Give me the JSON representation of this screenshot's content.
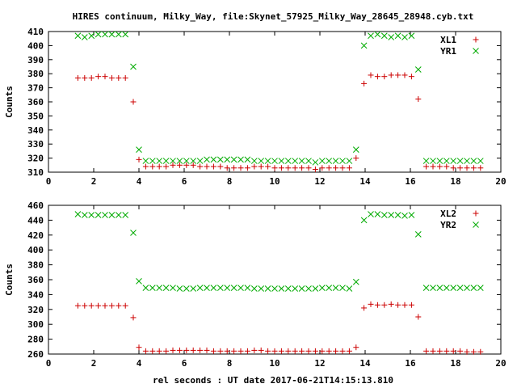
{
  "figure": {
    "title": "HIRES continuum, Milky_Way, file:Skynet_57925_Milky_Way_28645_28948.cyb.txt",
    "xlabel": "rel seconds : UT date 2017-06-21T14:15:13.810"
  },
  "chart_data": [
    {
      "type": "scatter",
      "ylabel": "Counts",
      "xlim": [
        0,
        20
      ],
      "ylim": [
        310,
        410
      ],
      "x_ticks": [
        0,
        2,
        4,
        6,
        8,
        10,
        12,
        14,
        16,
        18,
        20
      ],
      "y_ticks": [
        310,
        320,
        330,
        340,
        350,
        360,
        370,
        380,
        390,
        400,
        410
      ],
      "grid": false,
      "legend_position": "top-right",
      "series": [
        {
          "name": "XL1",
          "marker": "plus",
          "color": "#cc0000",
          "x": [
            1.3,
            1.6,
            1.9,
            2.2,
            2.5,
            2.8,
            3.1,
            3.4,
            3.75,
            4.0,
            4.3,
            4.6,
            4.9,
            5.2,
            5.5,
            5.8,
            6.1,
            6.4,
            6.7,
            7.0,
            7.3,
            7.6,
            7.9,
            8.2,
            8.5,
            8.8,
            9.1,
            9.4,
            9.7,
            10.0,
            10.3,
            10.6,
            10.9,
            11.2,
            11.5,
            11.8,
            12.1,
            12.4,
            12.7,
            13.0,
            13.3,
            13.6,
            13.95,
            14.25,
            14.55,
            14.85,
            15.15,
            15.45,
            15.75,
            16.05,
            16.35,
            16.7,
            17.0,
            17.3,
            17.6,
            17.9,
            18.2,
            18.5,
            18.8,
            19.1
          ],
          "y": [
            377,
            377,
            377,
            378,
            378,
            377,
            377,
            377,
            360,
            319,
            314,
            314,
            314,
            314,
            315,
            315,
            315,
            315,
            314,
            314,
            314,
            314,
            313,
            313,
            313,
            313,
            314,
            314,
            314,
            313,
            313,
            313,
            313,
            313,
            313,
            312,
            313,
            313,
            313,
            313,
            313,
            320,
            373,
            379,
            378,
            378,
            379,
            379,
            379,
            378,
            362,
            314,
            314,
            314,
            314,
            313,
            313,
            313,
            313,
            313
          ]
        },
        {
          "name": "YR1",
          "marker": "cross",
          "color": "#00aa00",
          "x": [
            1.3,
            1.6,
            1.9,
            2.2,
            2.5,
            2.8,
            3.1,
            3.4,
            3.75,
            4.0,
            4.3,
            4.6,
            4.9,
            5.2,
            5.5,
            5.8,
            6.1,
            6.4,
            6.7,
            7.0,
            7.3,
            7.6,
            7.9,
            8.2,
            8.5,
            8.8,
            9.1,
            9.4,
            9.7,
            10.0,
            10.3,
            10.6,
            10.9,
            11.2,
            11.5,
            11.8,
            12.1,
            12.4,
            12.7,
            13.0,
            13.3,
            13.6,
            13.95,
            14.25,
            14.55,
            14.85,
            15.15,
            15.45,
            15.75,
            16.05,
            16.35,
            16.7,
            17.0,
            17.3,
            17.6,
            17.9,
            18.2,
            18.5,
            18.8,
            19.1
          ],
          "y": [
            407,
            406,
            407,
            408,
            408,
            408,
            408,
            408,
            385,
            326,
            318,
            318,
            318,
            318,
            318,
            318,
            318,
            318,
            318,
            319,
            319,
            319,
            319,
            319,
            319,
            319,
            318,
            318,
            318,
            318,
            318,
            318,
            318,
            318,
            318,
            317,
            318,
            318,
            318,
            318,
            318,
            326,
            400,
            407,
            408,
            407,
            406,
            407,
            406,
            407,
            383,
            318,
            318,
            318,
            318,
            318,
            318,
            318,
            318,
            318
          ]
        }
      ]
    },
    {
      "type": "scatter",
      "ylabel": "Counts",
      "xlim": [
        0,
        20
      ],
      "ylim": [
        260,
        460
      ],
      "x_ticks": [
        0,
        2,
        4,
        6,
        8,
        10,
        12,
        14,
        16,
        18,
        20
      ],
      "y_ticks": [
        260,
        280,
        300,
        320,
        340,
        360,
        380,
        400,
        420,
        440,
        460
      ],
      "grid": false,
      "legend_position": "top-right",
      "series": [
        {
          "name": "XL2",
          "marker": "plus",
          "color": "#cc0000",
          "x": [
            1.3,
            1.6,
            1.9,
            2.2,
            2.5,
            2.8,
            3.1,
            3.4,
            3.75,
            4.0,
            4.3,
            4.6,
            4.9,
            5.2,
            5.5,
            5.8,
            6.1,
            6.4,
            6.7,
            7.0,
            7.3,
            7.6,
            7.9,
            8.2,
            8.5,
            8.8,
            9.1,
            9.4,
            9.7,
            10.0,
            10.3,
            10.6,
            10.9,
            11.2,
            11.5,
            11.8,
            12.1,
            12.4,
            12.7,
            13.0,
            13.3,
            13.6,
            13.95,
            14.25,
            14.55,
            14.85,
            15.15,
            15.45,
            15.75,
            16.05,
            16.35,
            16.7,
            17.0,
            17.3,
            17.6,
            17.9,
            18.2,
            18.5,
            18.8,
            19.1
          ],
          "y": [
            325,
            325,
            325,
            325,
            325,
            325,
            325,
            325,
            309,
            269,
            264,
            264,
            264,
            264,
            265,
            265,
            265,
            265,
            265,
            265,
            264,
            264,
            264,
            264,
            264,
            264,
            265,
            265,
            264,
            264,
            264,
            264,
            264,
            264,
            264,
            264,
            264,
            264,
            264,
            264,
            264,
            269,
            322,
            327,
            326,
            326,
            327,
            326,
            326,
            326,
            310,
            264,
            264,
            264,
            264,
            264,
            264,
            263,
            263,
            263
          ]
        },
        {
          "name": "YR2",
          "marker": "cross",
          "color": "#00aa00",
          "x": [
            1.3,
            1.6,
            1.9,
            2.2,
            2.5,
            2.8,
            3.1,
            3.4,
            3.75,
            4.0,
            4.3,
            4.6,
            4.9,
            5.2,
            5.5,
            5.8,
            6.1,
            6.4,
            6.7,
            7.0,
            7.3,
            7.6,
            7.9,
            8.2,
            8.5,
            8.8,
            9.1,
            9.4,
            9.7,
            10.0,
            10.3,
            10.6,
            10.9,
            11.2,
            11.5,
            11.8,
            12.1,
            12.4,
            12.7,
            13.0,
            13.3,
            13.6,
            13.95,
            14.25,
            14.55,
            14.85,
            15.15,
            15.45,
            15.75,
            16.05,
            16.35,
            16.7,
            17.0,
            17.3,
            17.6,
            17.9,
            18.2,
            18.5,
            18.8,
            19.1
          ],
          "y": [
            448,
            447,
            447,
            447,
            447,
            447,
            447,
            447,
            423,
            358,
            349,
            349,
            349,
            349,
            349,
            348,
            348,
            348,
            349,
            349,
            349,
            349,
            349,
            349,
            349,
            349,
            348,
            348,
            348,
            348,
            348,
            348,
            348,
            348,
            348,
            348,
            349,
            349,
            349,
            349,
            348,
            357,
            440,
            448,
            448,
            447,
            447,
            447,
            446,
            447,
            421,
            349,
            349,
            349,
            349,
            349,
            349,
            349,
            349,
            349
          ]
        }
      ]
    }
  ]
}
